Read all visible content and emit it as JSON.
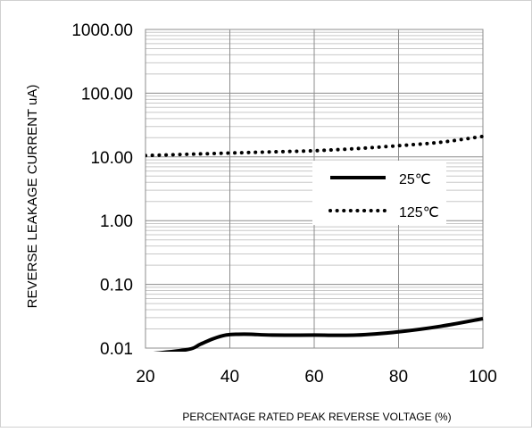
{
  "chart_data": {
    "type": "line",
    "title": "",
    "xlabel": "PERCENTAGE RATED PEAK REVERSE VOLTAGE (%)",
    "ylabel": "REVERSE LEAKAGE CURRENT uA)",
    "x_scale": "linear",
    "y_scale": "log",
    "xlim": [
      20,
      100
    ],
    "ylim": [
      0.01,
      1000
    ],
    "x_ticks": [
      "20",
      "40",
      "60",
      "80",
      "100"
    ],
    "y_ticks": [
      "0.01",
      "0.10",
      "1.00",
      "10.00",
      "100.00",
      "1000.00"
    ],
    "grid": true,
    "legend_position": "center-right",
    "series": [
      {
        "name": "25℃",
        "style": "solid",
        "color": "#000000",
        "x": [
          20,
          30,
          33,
          36,
          39,
          42,
          45,
          50,
          60,
          70,
          80,
          90,
          100
        ],
        "y": [
          0.008,
          0.0095,
          0.0115,
          0.014,
          0.016,
          0.0165,
          0.0165,
          0.016,
          0.016,
          0.016,
          0.018,
          0.022,
          0.029
        ]
      },
      {
        "name": "125℃",
        "style": "dotted",
        "color": "#000000",
        "x": [
          20,
          30,
          40,
          50,
          60,
          70,
          80,
          90,
          100
        ],
        "y": [
          10.5,
          11.0,
          11.5,
          12.0,
          12.5,
          13.5,
          15.0,
          17.0,
          21.0
        ]
      }
    ]
  }
}
